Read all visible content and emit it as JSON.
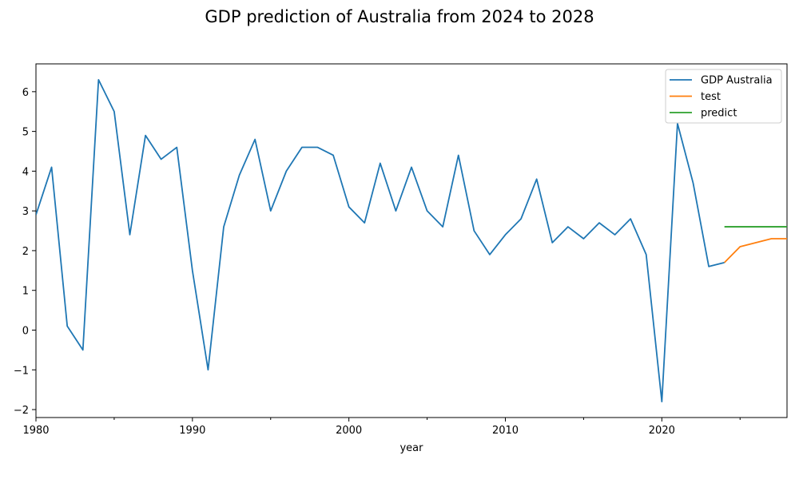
{
  "chart_data": {
    "type": "line",
    "title": "GDP prediction of Australia from 2024 to 2028",
    "xlabel": "year",
    "ylabel": "",
    "xlim": [
      1980,
      2028
    ],
    "ylim": [
      -2.2,
      6.7
    ],
    "x_ticks": [
      1980,
      1990,
      2000,
      2010,
      2020
    ],
    "x_minor_ticks": [
      1985,
      1995,
      2005,
      2015,
      2025
    ],
    "y_ticks": [
      -2,
      -1,
      0,
      1,
      2,
      3,
      4,
      5,
      6
    ],
    "y_tick_labels": [
      "−2",
      "−1",
      "0",
      "1",
      "2",
      "3",
      "4",
      "5",
      "6"
    ],
    "grid": false,
    "legend_position": "top-right",
    "series": [
      {
        "name": "GDP Australia",
        "color": "#1f77b4",
        "x": [
          1980,
          1981,
          1982,
          1983,
          1984,
          1985,
          1986,
          1987,
          1988,
          1989,
          1990,
          1991,
          1992,
          1993,
          1994,
          1995,
          1996,
          1997,
          1998,
          1999,
          2000,
          2001,
          2002,
          2003,
          2004,
          2005,
          2006,
          2007,
          2008,
          2009,
          2010,
          2011,
          2012,
          2013,
          2014,
          2015,
          2016,
          2017,
          2018,
          2019,
          2020,
          2021,
          2022,
          2023,
          2024
        ],
        "y": [
          2.9,
          4.1,
          0.1,
          -0.5,
          6.3,
          5.5,
          2.4,
          4.9,
          4.3,
          4.6,
          1.5,
          -1.0,
          2.6,
          3.9,
          4.8,
          3.0,
          4.0,
          4.6,
          4.6,
          4.4,
          3.1,
          2.7,
          4.2,
          3.0,
          4.1,
          3.0,
          2.6,
          4.4,
          2.5,
          1.9,
          2.4,
          2.8,
          3.8,
          2.2,
          2.6,
          2.3,
          2.7,
          2.4,
          2.8,
          1.9,
          -1.8,
          5.2,
          3.7,
          1.6,
          1.7
        ]
      },
      {
        "name": "test",
        "color": "#ff7f0e",
        "x": [
          2024,
          2025,
          2026,
          2027,
          2028
        ],
        "y": [
          1.7,
          2.1,
          2.2,
          2.3,
          2.3
        ]
      },
      {
        "name": "predict",
        "color": "#2ca02c",
        "x": [
          2024,
          2025,
          2026,
          2027,
          2028
        ],
        "y": [
          2.6,
          2.6,
          2.6,
          2.6,
          2.6
        ]
      }
    ]
  }
}
